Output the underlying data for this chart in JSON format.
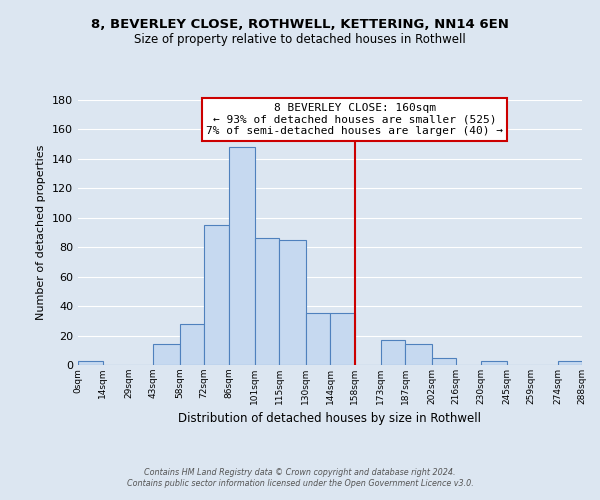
{
  "title1": "8, BEVERLEY CLOSE, ROTHWELL, KETTERING, NN14 6EN",
  "title2": "Size of property relative to detached houses in Rothwell",
  "xlabel": "Distribution of detached houses by size in Rothwell",
  "ylabel": "Number of detached properties",
  "bar_edges": [
    0,
    14,
    29,
    43,
    58,
    72,
    86,
    101,
    115,
    130,
    144,
    158,
    173,
    187,
    202,
    216,
    230,
    245,
    259,
    274,
    288
  ],
  "bar_heights": [
    3,
    0,
    0,
    14,
    28,
    95,
    148,
    86,
    85,
    35,
    35,
    0,
    17,
    14,
    5,
    0,
    3,
    0,
    0,
    3
  ],
  "bar_color": "#c6d9f0",
  "bar_edge_color": "#4f81bd",
  "vline_x": 158,
  "vline_color": "#cc0000",
  "annotation_title": "8 BEVERLEY CLOSE: 160sqm",
  "annotation_line1": "← 93% of detached houses are smaller (525)",
  "annotation_line2": "7% of semi-detached houses are larger (40) →",
  "annotation_box_color": "#ffffff",
  "annotation_box_edge": "#cc0000",
  "ylim": [
    0,
    180
  ],
  "yticks": [
    0,
    20,
    40,
    60,
    80,
    100,
    120,
    140,
    160,
    180
  ],
  "xtick_labels": [
    "0sqm",
    "14sqm",
    "29sqm",
    "43sqm",
    "58sqm",
    "72sqm",
    "86sqm",
    "101sqm",
    "115sqm",
    "130sqm",
    "144sqm",
    "158sqm",
    "173sqm",
    "187sqm",
    "202sqm",
    "216sqm",
    "230sqm",
    "245sqm",
    "259sqm",
    "274sqm",
    "288sqm"
  ],
  "footer1": "Contains HM Land Registry data © Crown copyright and database right 2024.",
  "footer2": "Contains public sector information licensed under the Open Government Licence v3.0.",
  "bg_color": "#dce6f1",
  "grid_color": "#ffffff",
  "title1_fontsize": 9.5,
  "title2_fontsize": 8.5,
  "xlabel_fontsize": 8.5,
  "ylabel_fontsize": 8.0,
  "xtick_fontsize": 6.5,
  "ytick_fontsize": 8.0,
  "footer_fontsize": 5.8,
  "annot_fontsize": 8.0
}
